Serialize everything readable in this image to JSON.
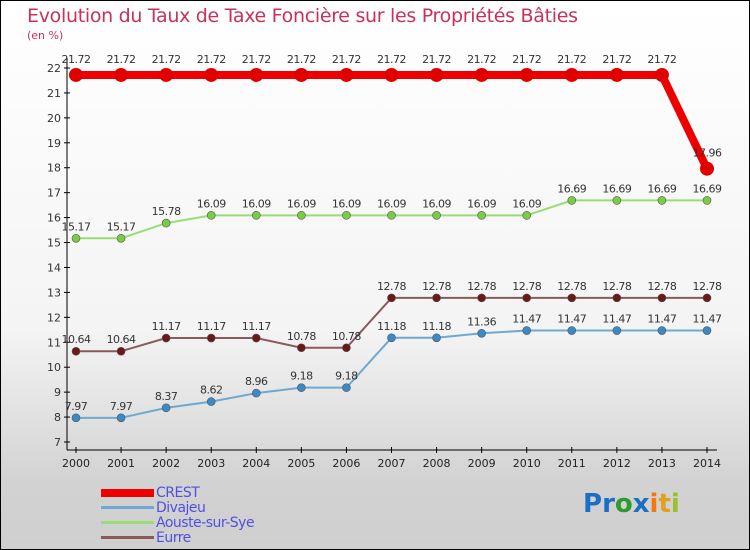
{
  "chart_data": {
    "type": "line",
    "title": "Evolution du Taux de Taxe Foncière sur les Propriétés Bâties",
    "ylabel": "(en %)",
    "xlabel": "",
    "ylim": [
      7,
      22
    ],
    "yticks": [
      7,
      8,
      9,
      10,
      11,
      12,
      13,
      14,
      15,
      16,
      17,
      18,
      19,
      20,
      21,
      22
    ],
    "x": [
      2000,
      2001,
      2002,
      2003,
      2004,
      2005,
      2006,
      2007,
      2008,
      2009,
      2010,
      2011,
      2012,
      2013,
      2014
    ],
    "legend_position": "bottom-left",
    "series": [
      {
        "name": "CREST",
        "color": "#ee0000",
        "values": [
          21.72,
          21.72,
          21.72,
          21.72,
          21.72,
          21.72,
          21.72,
          21.72,
          21.72,
          21.72,
          21.72,
          21.72,
          21.72,
          21.72,
          17.96
        ]
      },
      {
        "name": "Divajeu",
        "color": "#6fa8d0",
        "values": [
          7.97,
          7.97,
          8.37,
          8.62,
          8.96,
          9.18,
          9.18,
          11.18,
          11.18,
          11.36,
          11.47,
          11.47,
          11.47,
          11.47,
          11.47
        ]
      },
      {
        "name": "Aouste-sur-Sye",
        "color": "#99dd77",
        "values": [
          15.17,
          15.17,
          15.78,
          16.09,
          16.09,
          16.09,
          16.09,
          16.09,
          16.09,
          16.09,
          16.09,
          16.69,
          16.69,
          16.69,
          16.69
        ]
      },
      {
        "name": "Eurre",
        "color": "#8a5a5a",
        "values": [
          10.64,
          10.64,
          11.17,
          11.17,
          11.17,
          10.78,
          10.78,
          12.78,
          12.78,
          12.78,
          12.78,
          12.78,
          12.78,
          12.78,
          12.78
        ]
      }
    ]
  },
  "logo": {
    "text": "Proxiti"
  }
}
